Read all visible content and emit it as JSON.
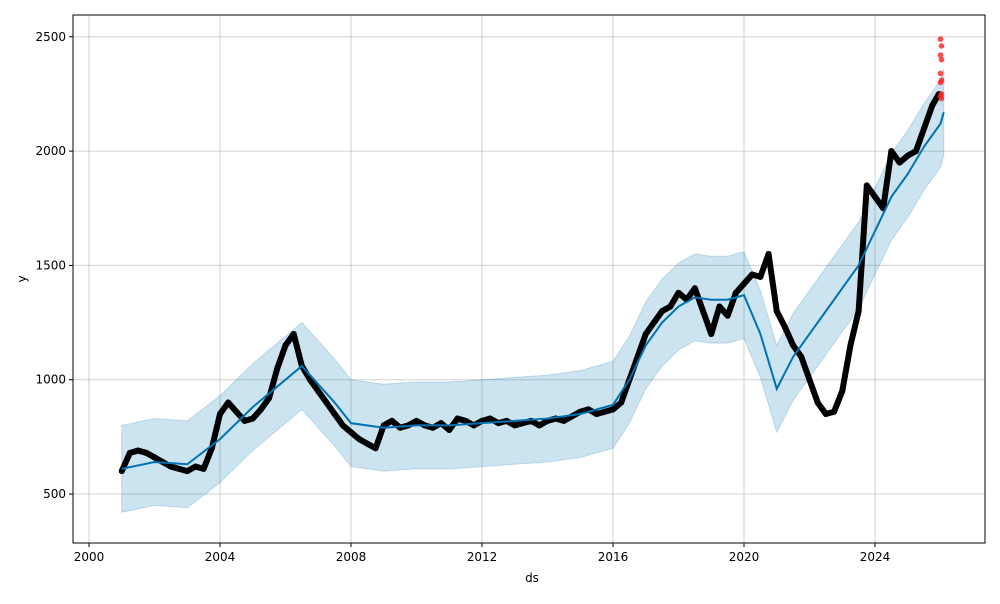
{
  "chart_data": {
    "type": "scatter",
    "title": "",
    "xlabel": "ds",
    "ylabel": "y",
    "xlim": [
      1999.7,
      2027.4
    ],
    "ylim": [
      300,
      2600
    ],
    "xticks": [
      2000,
      2004,
      2008,
      2012,
      2016,
      2020,
      2024
    ],
    "xtick_labels": [
      "2000",
      "2004",
      "2008",
      "2012",
      "2016",
      "2020",
      "2024"
    ],
    "yticks": [
      500,
      1000,
      1500,
      2000,
      2500
    ],
    "ytick_labels": [
      "500",
      "1000",
      "1500",
      "2000",
      "2500"
    ],
    "grid": true,
    "colors": {
      "observed": "#000000",
      "forecast": "#0072B2",
      "interval": "#0072B2",
      "future_points": "#ff2020"
    },
    "forecast": {
      "x": [
        2001.0,
        2002.0,
        2003.0,
        2004.0,
        2005.0,
        2006.0,
        2006.5,
        2007.0,
        2007.5,
        2008.0,
        2009.0,
        2010.0,
        2011.0,
        2012.0,
        2013.0,
        2014.0,
        2015.0,
        2016.0,
        2016.5,
        2017.0,
        2017.5,
        2018.0,
        2018.5,
        2019.0,
        2019.5,
        2020.0,
        2020.5,
        2021.0,
        2021.5,
        2022.0,
        2022.5,
        2023.0,
        2023.5,
        2024.0,
        2024.5,
        2025.0,
        2025.5,
        2026.0,
        2026.1
      ],
      "yhat": [
        610,
        640,
        630,
        740,
        880,
        1000,
        1060,
        980,
        900,
        810,
        790,
        800,
        800,
        810,
        820,
        830,
        850,
        890,
        1000,
        1150,
        1250,
        1320,
        1360,
        1350,
        1350,
        1370,
        1200,
        960,
        1100,
        1200,
        1300,
        1400,
        1500,
        1650,
        1800,
        1900,
        2020,
        2120,
        2170
      ],
      "interval_halfwidth": 190
    },
    "observed": {
      "x": [
        2001.0,
        2001.25,
        2001.5,
        2001.75,
        2002.0,
        2002.25,
        2002.5,
        2002.75,
        2003.0,
        2003.25,
        2003.5,
        2003.75,
        2004.0,
        2004.25,
        2004.5,
        2004.75,
        2005.0,
        2005.25,
        2005.5,
        2005.75,
        2006.0,
        2006.25,
        2006.5,
        2006.75,
        2007.0,
        2007.25,
        2007.5,
        2007.75,
        2008.0,
        2008.25,
        2008.5,
        2008.75,
        2009.0,
        2009.25,
        2009.5,
        2009.75,
        2010.0,
        2010.25,
        2010.5,
        2010.75,
        2011.0,
        2011.25,
        2011.5,
        2011.75,
        2012.0,
        2012.25,
        2012.5,
        2012.75,
        2013.0,
        2013.25,
        2013.5,
        2013.75,
        2014.0,
        2014.25,
        2014.5,
        2014.75,
        2015.0,
        2015.25,
        2015.5,
        2015.75,
        2016.0,
        2016.25,
        2016.5,
        2016.75,
        2017.0,
        2017.25,
        2017.5,
        2017.75,
        2018.0,
        2018.25,
        2018.5,
        2018.75,
        2019.0,
        2019.25,
        2019.5,
        2019.75,
        2020.0,
        2020.25,
        2020.5,
        2020.75,
        2021.0,
        2021.25,
        2021.5,
        2021.75,
        2022.0,
        2022.25,
        2022.5,
        2022.75,
        2023.0,
        2023.25,
        2023.5,
        2023.75,
        2024.0,
        2024.25,
        2024.5,
        2024.75,
        2025.0,
        2025.25,
        2025.5,
        2025.75,
        2025.95
      ],
      "y": [
        600,
        680,
        690,
        680,
        660,
        640,
        620,
        610,
        600,
        620,
        610,
        700,
        850,
        900,
        860,
        820,
        830,
        870,
        920,
        1050,
        1150,
        1200,
        1060,
        1000,
        950,
        900,
        850,
        800,
        770,
        740,
        720,
        700,
        800,
        820,
        790,
        800,
        820,
        800,
        790,
        810,
        780,
        830,
        820,
        800,
        820,
        830,
        810,
        820,
        800,
        810,
        820,
        800,
        820,
        830,
        820,
        840,
        860,
        870,
        850,
        860,
        870,
        900,
        1000,
        1100,
        1200,
        1250,
        1300,
        1320,
        1380,
        1350,
        1400,
        1300,
        1200,
        1320,
        1280,
        1380,
        1420,
        1460,
        1450,
        1550,
        1300,
        1230,
        1150,
        1100,
        1000,
        900,
        850,
        860,
        950,
        1150,
        1300,
        1850,
        1800,
        1750,
        2000,
        1950,
        1980,
        2000,
        2100,
        2200,
        2250
      ]
    },
    "future_points": {
      "x": [
        2026.0,
        2026.0,
        2026.0,
        2026.0,
        2026.0,
        2026.0,
        2026.0,
        2026.0,
        2026.0,
        2026.0
      ],
      "y": [
        2490,
        2460,
        2420,
        2400,
        2340,
        2310,
        2300,
        2250,
        2240,
        2230
      ]
    }
  }
}
